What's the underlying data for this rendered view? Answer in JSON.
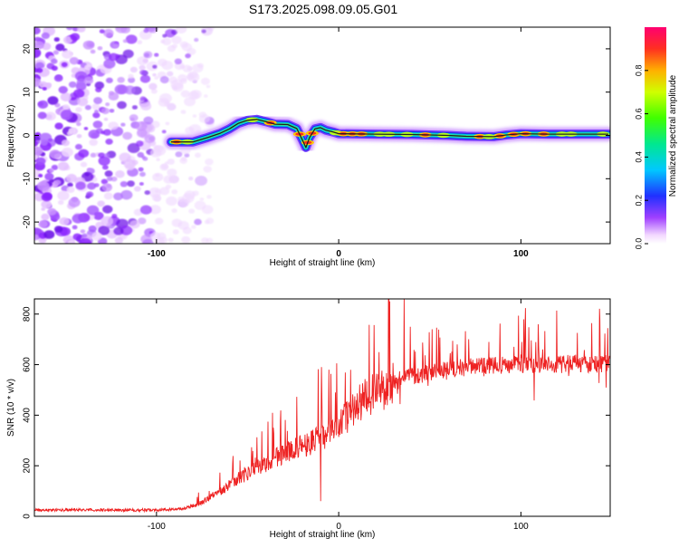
{
  "title": "S173.2025.098.09.05.G01",
  "chart_data": [
    {
      "type": "heatmap",
      "title": "S173.2025.098.09.05.G01",
      "xlabel": "Height of straight line (km)",
      "ylabel": "Frequency (Hz)",
      "xlim": [
        -167,
        149
      ],
      "ylim": [
        -25,
        25
      ],
      "xticks": [
        -100,
        0,
        100
      ],
      "yticks": [
        -20,
        -10,
        0,
        10,
        20
      ],
      "colorbar": {
        "label": "Normalized spectral amplitude",
        "range": [
          0,
          1
        ],
        "ticks": [
          0.0,
          0.2,
          0.4,
          0.6,
          0.8
        ]
      },
      "noise_region_x": [
        -167,
        -80
      ],
      "signal_start_x": -92,
      "doppler_trace": [
        {
          "x": -92,
          "f": -1.5
        },
        {
          "x": -80,
          "f": -1.5
        },
        {
          "x": -72,
          "f": -0.5
        },
        {
          "x": -65,
          "f": 0.5
        },
        {
          "x": -60,
          "f": 1.5
        },
        {
          "x": -55,
          "f": 2.8
        },
        {
          "x": -50,
          "f": 3.5
        },
        {
          "x": -45,
          "f": 3.7
        },
        {
          "x": -40,
          "f": 3.2
        },
        {
          "x": -35,
          "f": 2.6
        },
        {
          "x": -28,
          "f": 2.5
        },
        {
          "x": -23,
          "f": 1.6
        },
        {
          "x": -20,
          "f": -1.0
        },
        {
          "x": -18,
          "f": -2.8
        },
        {
          "x": -16,
          "f": -0.5
        },
        {
          "x": -13,
          "f": 1.5
        },
        {
          "x": -10,
          "f": 1.8
        },
        {
          "x": -7,
          "f": 1.2
        },
        {
          "x": -3,
          "f": 0.8
        },
        {
          "x": 0,
          "f": 0.4
        },
        {
          "x": 20,
          "f": 0.3
        },
        {
          "x": 40,
          "f": 0.2
        },
        {
          "x": 60,
          "f": 0.0
        },
        {
          "x": 70,
          "f": -0.2
        },
        {
          "x": 85,
          "f": -0.3
        },
        {
          "x": 92,
          "f": 0.1
        },
        {
          "x": 100,
          "f": 0.4
        },
        {
          "x": 115,
          "f": 0.3
        },
        {
          "x": 130,
          "f": 0.3
        },
        {
          "x": 148,
          "f": 0.3
        }
      ]
    },
    {
      "type": "line",
      "xlabel": "Height of straight line (km)",
      "ylabel": "SNR (10 * v/v)",
      "xlim": [
        -167,
        149
      ],
      "ylim": [
        0,
        860
      ],
      "xticks": [
        -100,
        0,
        100
      ],
      "yticks": [
        0,
        200,
        400,
        600,
        800
      ],
      "color": "#ee2222",
      "envelope": [
        {
          "x": -167,
          "y": 25
        },
        {
          "x": -100,
          "y": 25
        },
        {
          "x": -85,
          "y": 30
        },
        {
          "x": -75,
          "y": 55
        },
        {
          "x": -65,
          "y": 100
        },
        {
          "x": -55,
          "y": 150
        },
        {
          "x": -45,
          "y": 190
        },
        {
          "x": -35,
          "y": 230
        },
        {
          "x": -25,
          "y": 265
        },
        {
          "x": -15,
          "y": 295
        },
        {
          "x": -8,
          "y": 320
        },
        {
          "x": 0,
          "y": 365
        },
        {
          "x": 8,
          "y": 420
        },
        {
          "x": 15,
          "y": 470
        },
        {
          "x": 25,
          "y": 510
        },
        {
          "x": 35,
          "y": 545
        },
        {
          "x": 50,
          "y": 570
        },
        {
          "x": 70,
          "y": 590
        },
        {
          "x": 100,
          "y": 600
        },
        {
          "x": 130,
          "y": 605
        },
        {
          "x": 149,
          "y": 600
        }
      ],
      "notable_points": [
        {
          "x": -12,
          "y": 330
        },
        {
          "x": -10,
          "y": 60
        },
        {
          "x": 28,
          "y": 850
        },
        {
          "x": 36,
          "y": 860
        },
        {
          "x": 100,
          "y": 640
        }
      ]
    }
  ]
}
